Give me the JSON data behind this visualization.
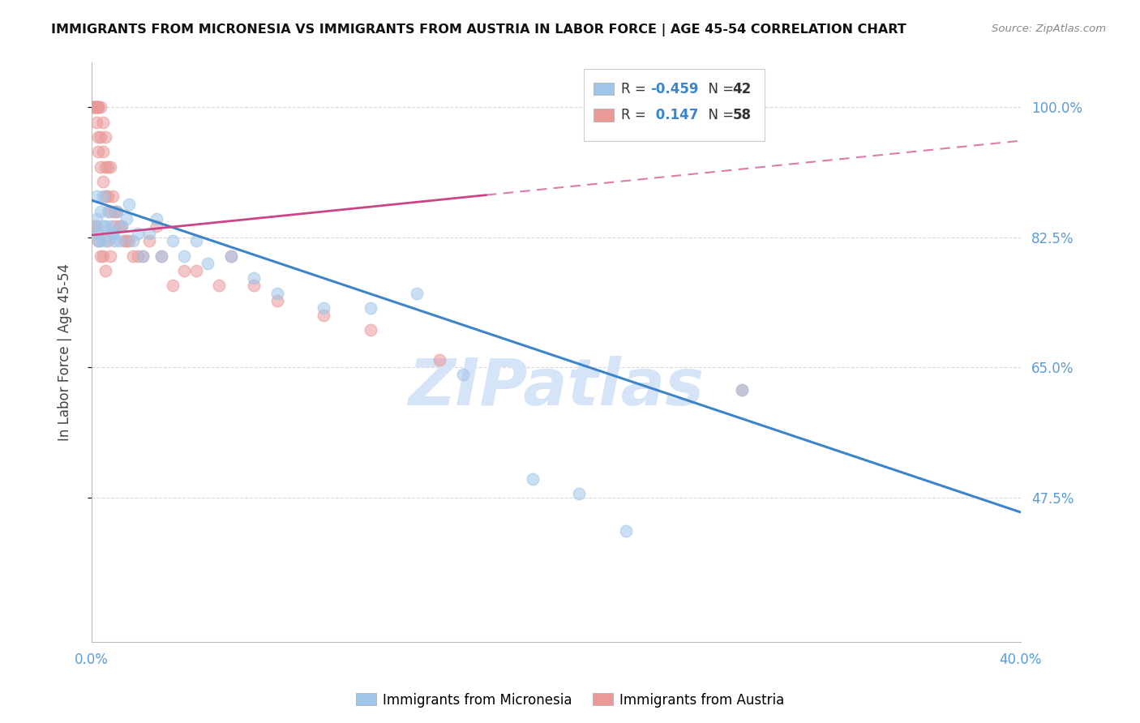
{
  "title": "IMMIGRANTS FROM MICRONESIA VS IMMIGRANTS FROM AUSTRIA IN LABOR FORCE | AGE 45-54 CORRELATION CHART",
  "source": "Source: ZipAtlas.com",
  "ylabel": "In Labor Force | Age 45-54",
  "xlim": [
    0.0,
    0.4
  ],
  "ylim": [
    0.28,
    1.06
  ],
  "right_yticks": [
    1.0,
    0.825,
    0.65,
    0.475
  ],
  "right_yticklabels": [
    "100.0%",
    "82.5%",
    "65.0%",
    "47.5%"
  ],
  "xticks": [
    0.0,
    0.05,
    0.1,
    0.15,
    0.2,
    0.25,
    0.3,
    0.35,
    0.4
  ],
  "xticklabels": [
    "0.0%",
    "",
    "",
    "",
    "",
    "",
    "",
    "",
    "40.0%"
  ],
  "blue_R": -0.459,
  "blue_N": 42,
  "pink_R": 0.147,
  "pink_N": 58,
  "blue_color": "#9fc5e8",
  "pink_color": "#ea9999",
  "blue_line_color": "#3d85c8",
  "pink_line_color": "#cc4488",
  "grid_color": "#d9d9d9",
  "tick_color": "#5b9bd5",
  "watermark_color": "#d6e4f7",
  "blue_trend_x0": 0.0,
  "blue_trend_y0": 0.875,
  "blue_trend_x1": 0.4,
  "blue_trend_y1": 0.455,
  "pink_trend_x0": 0.0,
  "pink_trend_y0": 0.828,
  "pink_trend_x1": 0.4,
  "pink_trend_y1": 0.955,
  "blue_scatter_x": [
    0.001,
    0.002,
    0.002,
    0.003,
    0.004,
    0.004,
    0.005,
    0.005,
    0.006,
    0.007,
    0.008,
    0.009,
    0.01,
    0.011,
    0.012,
    0.013,
    0.015,
    0.016,
    0.018,
    0.02,
    0.022,
    0.025,
    0.028,
    0.03,
    0.035,
    0.04,
    0.045,
    0.05,
    0.06,
    0.07,
    0.08,
    0.1,
    0.12,
    0.14,
    0.16,
    0.19,
    0.21,
    0.23,
    0.28,
    0.003,
    0.006,
    0.009
  ],
  "blue_scatter_y": [
    0.84,
    0.88,
    0.85,
    0.83,
    0.82,
    0.86,
    0.88,
    0.84,
    0.84,
    0.86,
    0.84,
    0.83,
    0.82,
    0.86,
    0.82,
    0.84,
    0.85,
    0.87,
    0.82,
    0.83,
    0.8,
    0.83,
    0.85,
    0.8,
    0.82,
    0.8,
    0.82,
    0.79,
    0.8,
    0.77,
    0.75,
    0.73,
    0.73,
    0.75,
    0.64,
    0.5,
    0.48,
    0.43,
    0.62,
    0.82,
    0.82,
    0.83
  ],
  "pink_scatter_x": [
    0.001,
    0.001,
    0.001,
    0.002,
    0.002,
    0.002,
    0.002,
    0.003,
    0.003,
    0.003,
    0.003,
    0.004,
    0.004,
    0.004,
    0.005,
    0.005,
    0.005,
    0.006,
    0.006,
    0.006,
    0.007,
    0.007,
    0.008,
    0.008,
    0.009,
    0.01,
    0.01,
    0.011,
    0.012,
    0.013,
    0.014,
    0.015,
    0.016,
    0.018,
    0.02,
    0.022,
    0.025,
    0.028,
    0.03,
    0.035,
    0.04,
    0.045,
    0.055,
    0.06,
    0.07,
    0.08,
    0.1,
    0.12,
    0.15,
    0.001,
    0.002,
    0.003,
    0.004,
    0.005,
    0.006,
    0.007,
    0.008,
    0.28
  ],
  "pink_scatter_y": [
    1.0,
    1.0,
    1.0,
    1.0,
    1.0,
    1.0,
    0.98,
    1.0,
    1.0,
    0.96,
    0.94,
    1.0,
    0.96,
    0.92,
    0.98,
    0.94,
    0.9,
    0.96,
    0.92,
    0.88,
    0.92,
    0.88,
    0.92,
    0.86,
    0.88,
    0.86,
    0.84,
    0.86,
    0.84,
    0.84,
    0.82,
    0.82,
    0.82,
    0.8,
    0.8,
    0.8,
    0.82,
    0.84,
    0.8,
    0.76,
    0.78,
    0.78,
    0.76,
    0.8,
    0.76,
    0.74,
    0.72,
    0.7,
    0.66,
    0.84,
    0.84,
    0.82,
    0.8,
    0.8,
    0.78,
    0.82,
    0.8,
    0.62
  ]
}
